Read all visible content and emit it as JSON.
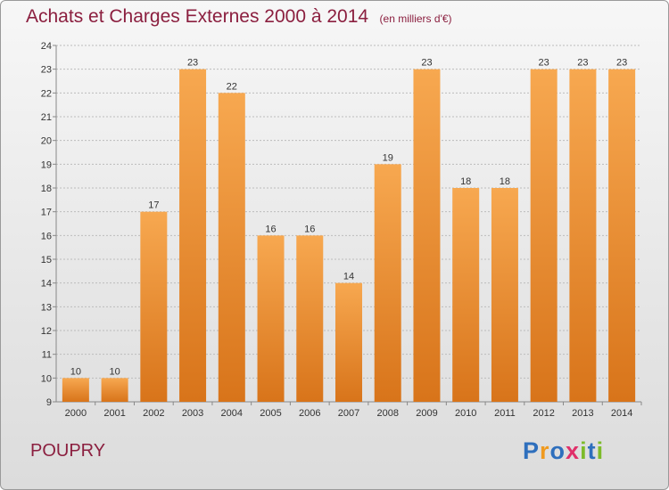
{
  "title": "Achats et Charges Externes 2000 à 2014",
  "subtitle": "(en milliers d'€)",
  "commune": "POUPRY",
  "logo": {
    "text": "Proxiti",
    "letters": [
      {
        "ch": "P",
        "color": "#2e6fbd"
      },
      {
        "ch": "r",
        "color": "#f09a1e"
      },
      {
        "ch": "o",
        "color": "#2e6fbd"
      },
      {
        "ch": "x",
        "color": "#e0306a"
      },
      {
        "ch": "i",
        "color": "#7dbb2a"
      },
      {
        "ch": "t",
        "color": "#2e6fbd"
      },
      {
        "ch": "i",
        "color": "#7dbb2a"
      }
    ]
  },
  "colors": {
    "title": "#8b1f3f",
    "bar_light": "#f7a850",
    "bar_dark": "#d8741a",
    "grid": "#bcbcbc"
  },
  "chart_data": {
    "type": "bar",
    "categories": [
      "2000",
      "2001",
      "2002",
      "2003",
      "2004",
      "2005",
      "2006",
      "2007",
      "2008",
      "2009",
      "2010",
      "2011",
      "2012",
      "2013",
      "2014"
    ],
    "values": [
      10,
      10,
      17,
      23,
      22,
      16,
      16,
      14,
      19,
      23,
      18,
      18,
      23,
      23,
      23
    ],
    "ylim": [
      9,
      24
    ],
    "yticks": [
      9,
      10,
      11,
      12,
      13,
      14,
      15,
      16,
      17,
      18,
      19,
      20,
      21,
      22,
      23,
      24
    ],
    "grid": true,
    "data_labels": true
  }
}
